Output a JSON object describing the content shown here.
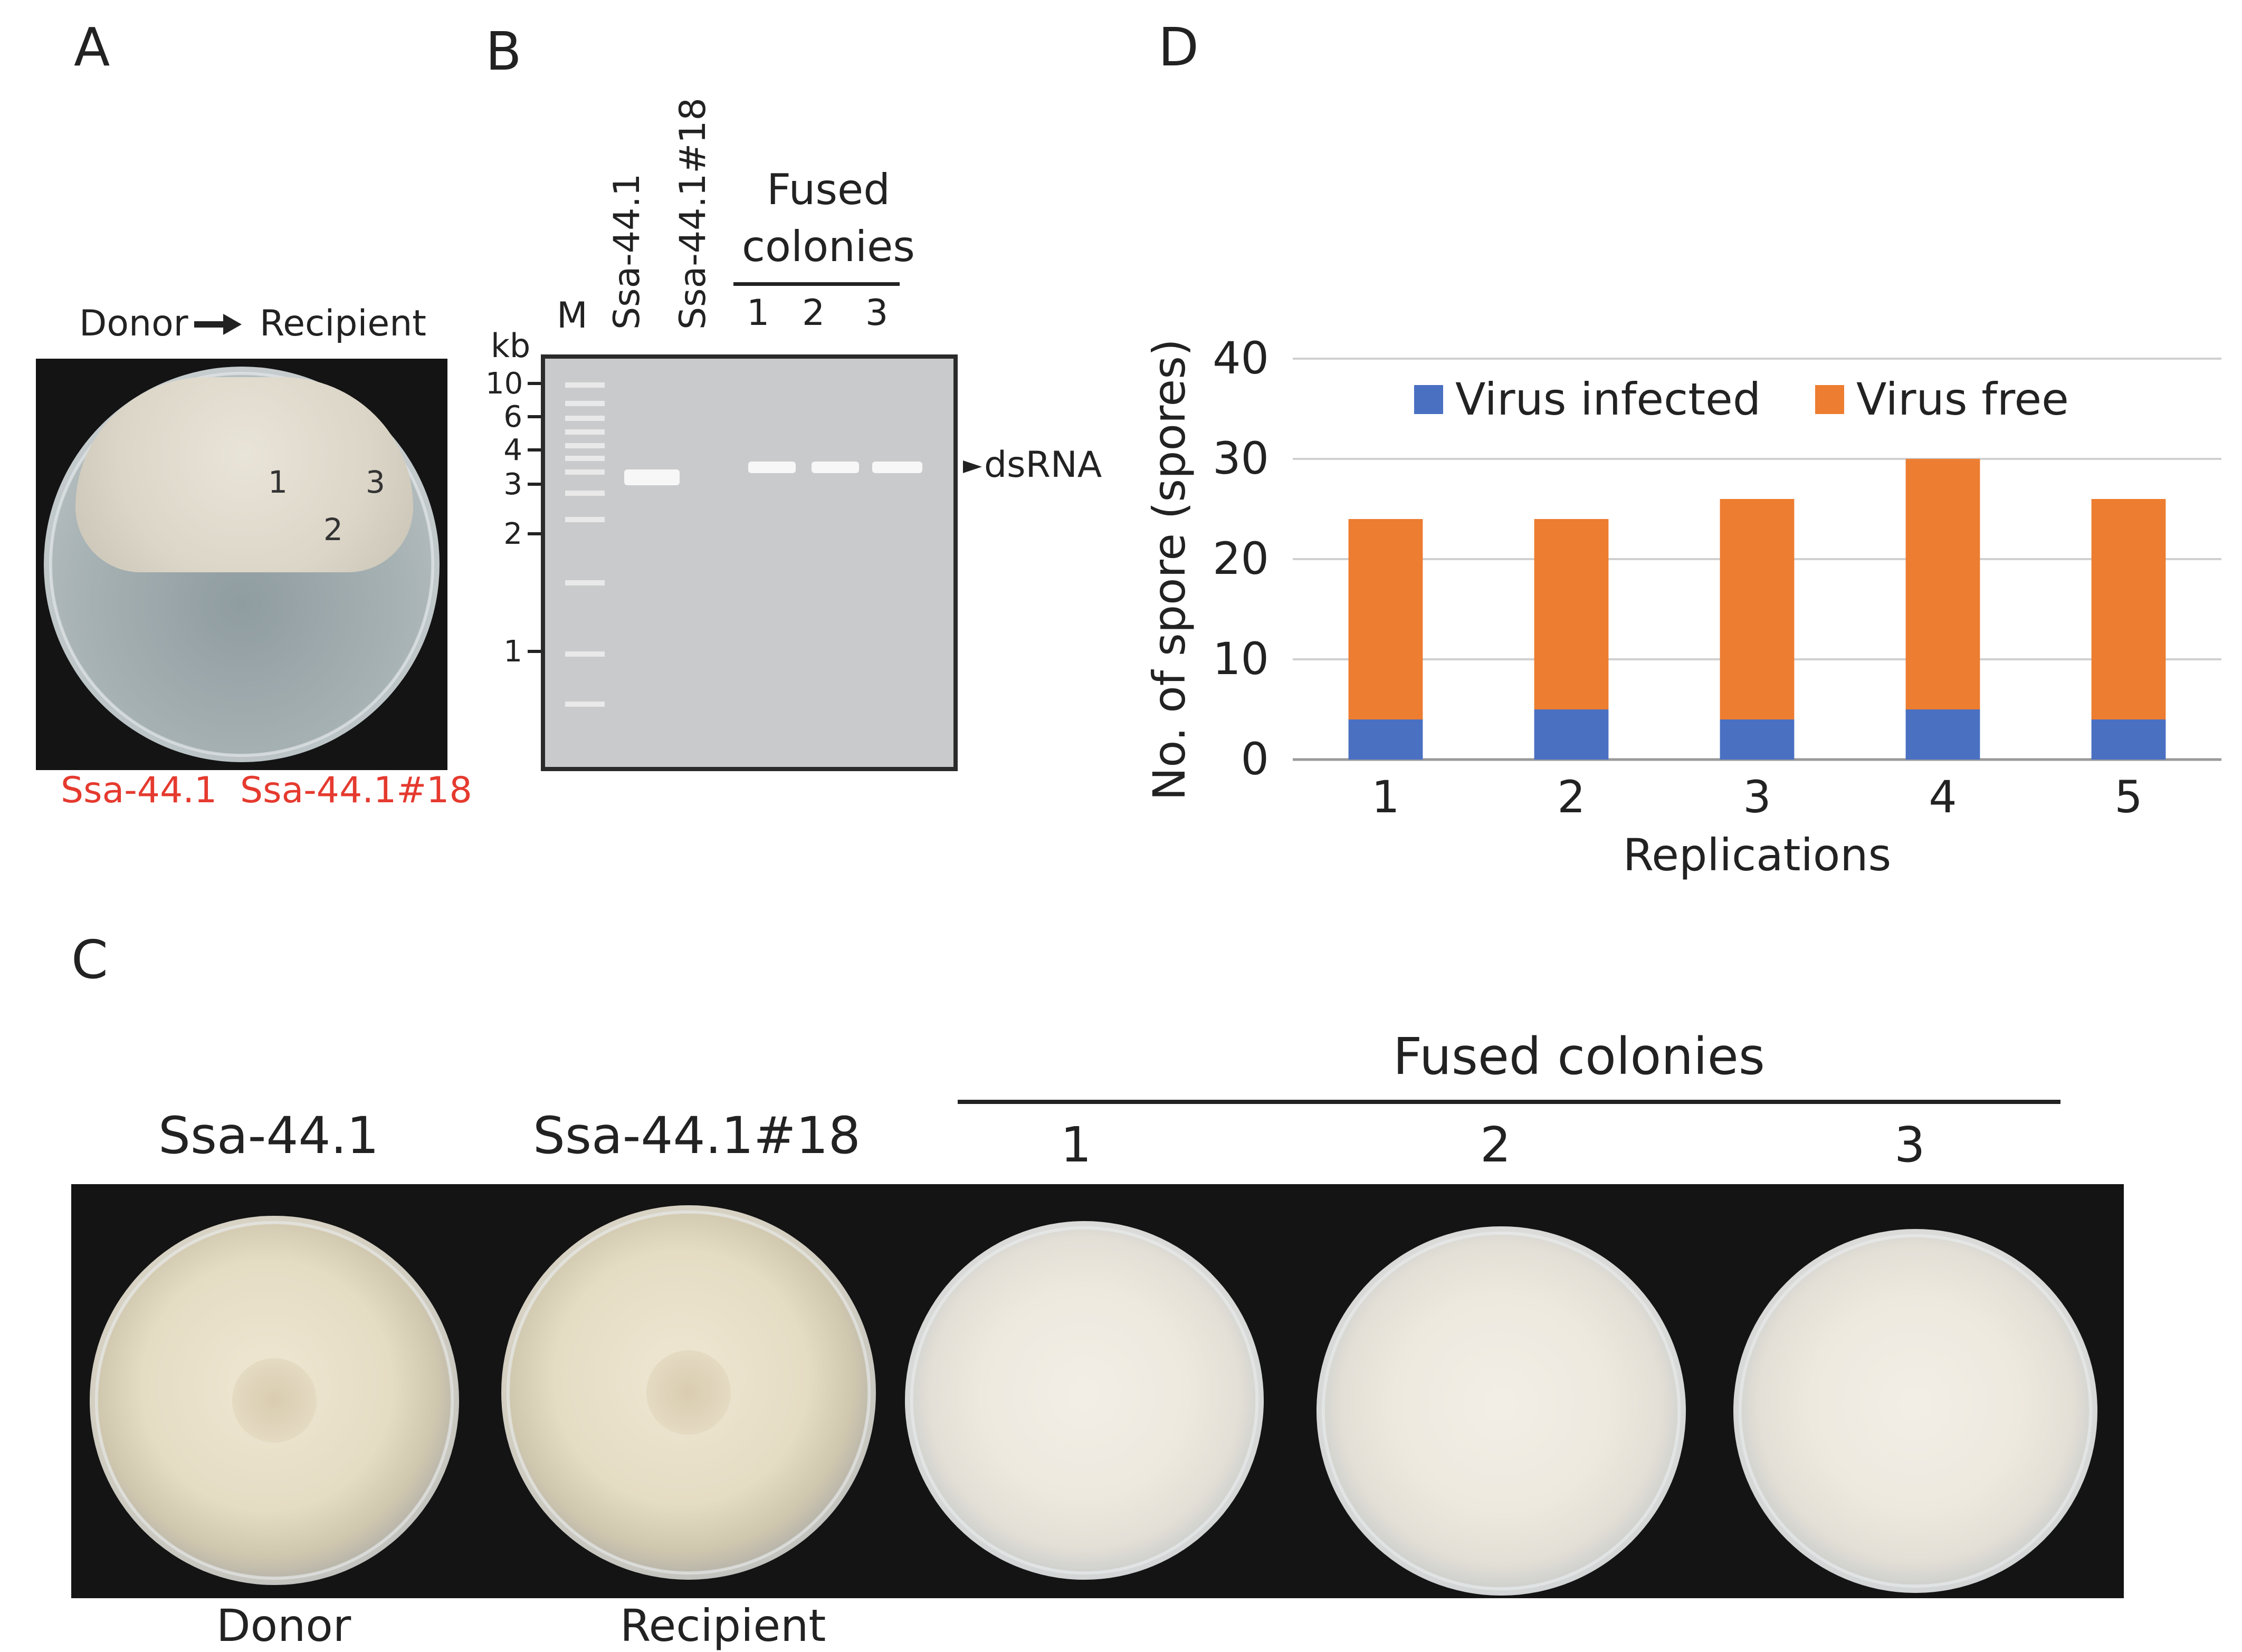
{
  "panels": {
    "A": {
      "letter": "A",
      "donor": "Donor",
      "recipient": "Recipient",
      "arrow": "arrow-right-icon",
      "plate_marks": [
        "1",
        "2",
        "3"
      ],
      "strain_donor": "Ssa-44.1",
      "strain_recipient": "Ssa-44.1#18",
      "strain_color": "#e53a2f"
    },
    "B": {
      "letter": "B",
      "lane_M": "M",
      "lane_donor": "Ssa-44.1",
      "lane_recipient": "Ssa-44.1#18",
      "fused_label_line1": "Fused",
      "fused_label_line2": "colonies",
      "fused_lanes": [
        "1",
        "2",
        "3"
      ],
      "unit": "kb",
      "markers": [
        "10",
        "6",
        "4",
        "3",
        "2",
        "1"
      ],
      "band_label": "dsRNA"
    },
    "C": {
      "letter": "C",
      "fused_header": "Fused colonies",
      "strains": [
        "Ssa-44.1",
        "Ssa-44.1#18"
      ],
      "fused_numbers": [
        "1",
        "2",
        "3"
      ],
      "captions": [
        "Donor",
        "Recipient"
      ]
    },
    "D": {
      "letter": "D"
    }
  },
  "chart_data": {
    "type": "bar",
    "stacked": true,
    "title": "",
    "xlabel": "Replications",
    "ylabel": "No. of spore (spores)",
    "categories": [
      "1",
      "2",
      "3",
      "4",
      "5"
    ],
    "series": [
      {
        "name": "Virus infected",
        "color": "#4a70c2",
        "values": [
          4,
          5,
          4,
          5,
          4
        ]
      },
      {
        "name": "Virus free",
        "color": "#ed7d31",
        "values": [
          20,
          19,
          22,
          25,
          22
        ]
      }
    ],
    "ylim": [
      0,
      40
    ],
    "yticks": [
      "0",
      "10",
      "20",
      "30",
      "40"
    ],
    "grid": true,
    "legend": "top"
  }
}
